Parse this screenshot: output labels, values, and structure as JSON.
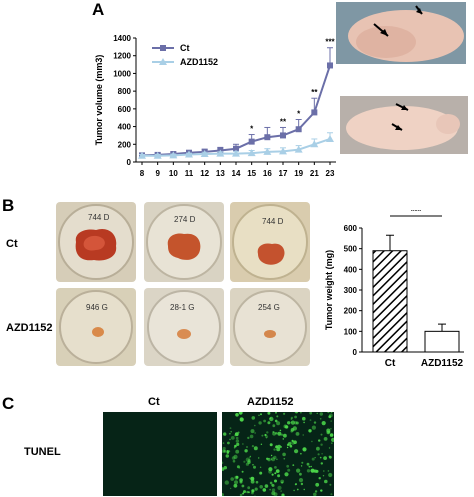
{
  "panels": {
    "a": "A",
    "b": "B",
    "c": "C"
  },
  "colors": {
    "ct_line": "#6b6fa8",
    "azd_line": "#a9cfe6",
    "tunel_bg": "#062417",
    "tunel_signal": "#4cd84a"
  },
  "chart_data": [
    {
      "type": "line",
      "title": "",
      "xlabel": "",
      "ylabel": "Tumor volume (mm3)",
      "ylim": [
        0,
        1400
      ],
      "yticks": [
        0,
        200,
        400,
        600,
        800,
        1000,
        1200,
        1400
      ],
      "x": [
        8,
        9,
        10,
        11,
        12,
        13,
        14,
        15,
        16,
        17,
        19,
        21,
        23
      ],
      "series": [
        {
          "name": "Ct",
          "marker": "square",
          "values": [
            75,
            80,
            90,
            105,
            115,
            130,
            150,
            230,
            280,
            300,
            370,
            560,
            1090
          ],
          "errors": [
            20,
            20,
            20,
            25,
            30,
            35,
            50,
            80,
            110,
            90,
            110,
            160,
            200
          ]
        },
        {
          "name": "AZD1152",
          "marker": "triangle",
          "values": [
            70,
            70,
            75,
            85,
            90,
            95,
            95,
            100,
            115,
            120,
            140,
            200,
            260
          ],
          "errors": [
            15,
            15,
            15,
            15,
            20,
            20,
            25,
            30,
            35,
            40,
            45,
            60,
            70
          ]
        }
      ],
      "annotations": [
        {
          "x": 15,
          "text": "*"
        },
        {
          "x": 17,
          "text": "**"
        },
        {
          "x": 19,
          "text": "*"
        },
        {
          "x": 21,
          "text": "**"
        },
        {
          "x": 23,
          "text": "***"
        }
      ],
      "legend": "top-left"
    },
    {
      "type": "bar",
      "ylabel": "Tumor weight (mg)",
      "ylim": [
        0,
        600
      ],
      "yticks": [
        0,
        100,
        200,
        300,
        400,
        500,
        600
      ],
      "categories": [
        "Ct",
        "AZD1152"
      ],
      "values": [
        490,
        100
      ],
      "errors": [
        75,
        35
      ],
      "fills": [
        "hatched",
        "white"
      ],
      "significance": "***"
    }
  ],
  "panel_b": {
    "row_labels": [
      "Ct",
      "AZD1152"
    ],
    "dish_labels_top": [
      "744 D",
      "274 D",
      "744 D"
    ],
    "dish_labels_bottom": [
      "946 G",
      "28-1 G",
      "254 G"
    ]
  },
  "panel_c": {
    "col_labels": [
      "Ct",
      "AZD1152"
    ],
    "row_label": "TUNEL"
  }
}
